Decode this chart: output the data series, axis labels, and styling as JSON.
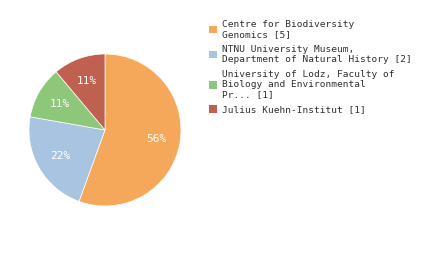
{
  "labels": [
    "Centre for Biodiversity\nGenomics [5]",
    "NTNU University Museum,\nDepartment of Natural History [2]",
    "University of Lodz, Faculty of\nBiology and Environmental\nPr... [1]",
    "Julius Kuehn-Institut [1]"
  ],
  "values": [
    55,
    22,
    11,
    11
  ],
  "colors": [
    "#F5A85A",
    "#A8C4E0",
    "#8DC87A",
    "#C06050"
  ],
  "background_color": "#ffffff",
  "text_color": "#303030",
  "pct_fontsize": 8,
  "legend_fontsize": 6.8
}
